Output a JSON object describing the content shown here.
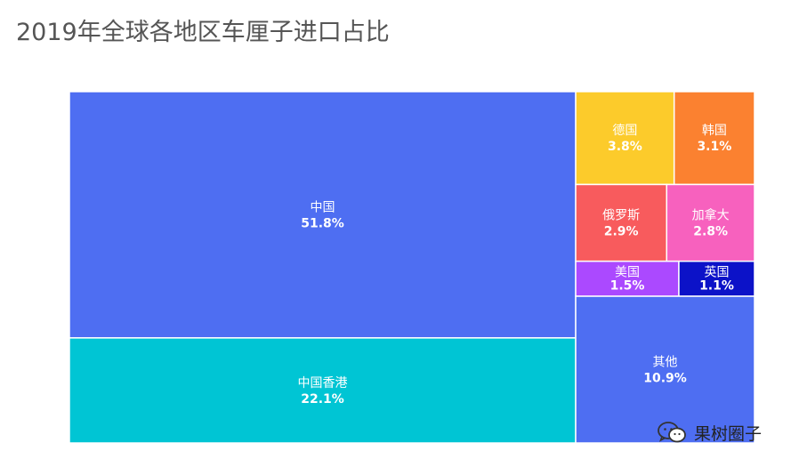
{
  "title": "2019年全球各地区车厘子进口占比",
  "watermark": {
    "text": "果树圈子",
    "icon": "wechat-icon"
  },
  "chart_data": {
    "type": "treemap",
    "title": "2019年全球各地区车厘子进口占比",
    "unit": "%",
    "items": [
      {
        "label": "中国",
        "value": 51.8,
        "display": "51.8%",
        "color": "#4e6ef2"
      },
      {
        "label": "中国香港",
        "value": 22.1,
        "display": "22.1%",
        "color": "#00c5d4"
      },
      {
        "label": "德国",
        "value": 3.8,
        "display": "3.8%",
        "color": "#fccb2b"
      },
      {
        "label": "韩国",
        "value": 3.1,
        "display": "3.1%",
        "color": "#fb8130"
      },
      {
        "label": "俄罗斯",
        "value": 2.9,
        "display": "2.9%",
        "color": "#f85b5d"
      },
      {
        "label": "加拿大",
        "value": 2.8,
        "display": "2.8%",
        "color": "#f761be"
      },
      {
        "label": "美国",
        "value": 1.5,
        "display": "1.5%",
        "color": "#ab49ff"
      },
      {
        "label": "英国",
        "value": 1.1,
        "display": "1.1%",
        "color": "#0c12c8"
      },
      {
        "label": "其他",
        "value": 10.9,
        "display": "10.9%",
        "color": "#4e6ef2"
      }
    ]
  }
}
